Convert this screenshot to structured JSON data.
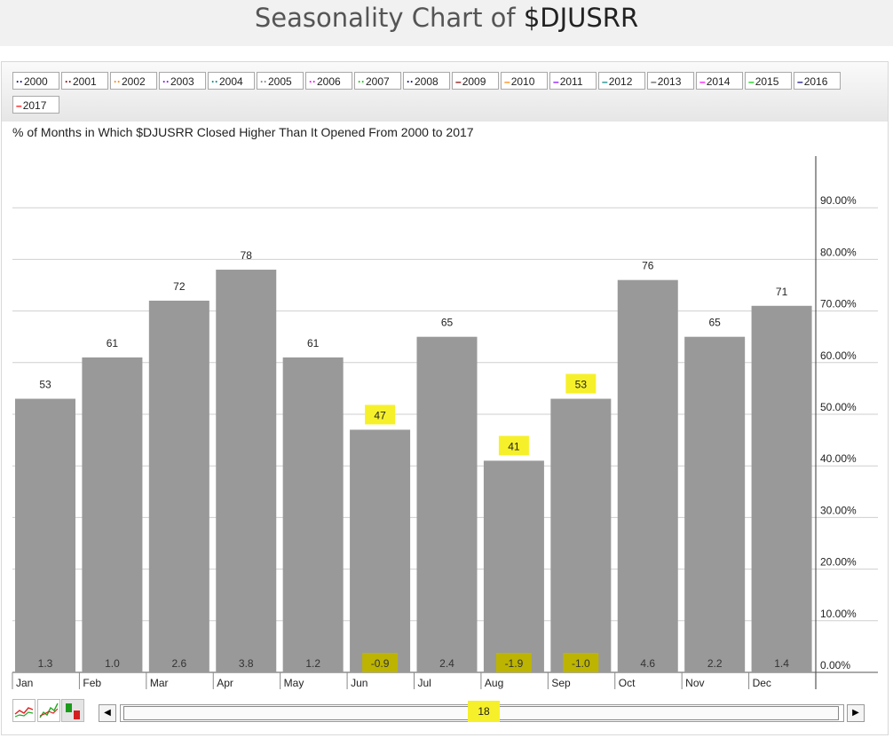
{
  "page": {
    "title_prefix": "Seasonality Chart of ",
    "title_symbol": "$DJUSRR"
  },
  "legend": [
    {
      "label": "2000",
      "color": "#000080"
    },
    {
      "label": "2001",
      "color": "#800000"
    },
    {
      "label": "2002",
      "color": "#ff8000"
    },
    {
      "label": "2003",
      "color": "#8000ff"
    },
    {
      "label": "2004",
      "color": "#008080"
    },
    {
      "label": "2005",
      "color": "#808080"
    },
    {
      "label": "2006",
      "color": "#ff00ff"
    },
    {
      "label": "2007",
      "color": "#00cc00"
    },
    {
      "label": "2008",
      "color": "#000080"
    },
    {
      "label": "2009",
      "color": "#800000"
    },
    {
      "label": "2010",
      "color": "#ff8000"
    },
    {
      "label": "2011",
      "color": "#8000ff"
    },
    {
      "label": "2012",
      "color": "#008080"
    },
    {
      "label": "2013",
      "color": "#555555"
    },
    {
      "label": "2014",
      "color": "#ff00ff"
    },
    {
      "label": "2015",
      "color": "#00cc00"
    },
    {
      "label": "2016",
      "color": "#000080"
    },
    {
      "label": "2017",
      "color": "#ff0000"
    }
  ],
  "chart_data": {
    "type": "bar",
    "title": "% of Months in Which $DJUSRR Closed Higher Than It Opened From 2000 to 2017",
    "categories": [
      "Jan",
      "Feb",
      "Mar",
      "Apr",
      "May",
      "Jun",
      "Jul",
      "Aug",
      "Sep",
      "Oct",
      "Nov",
      "Dec"
    ],
    "values": [
      53,
      61,
      72,
      78,
      61,
      47,
      65,
      41,
      53,
      76,
      65,
      71
    ],
    "avg_change": [
      "1.3",
      "1.0",
      "2.6",
      "3.8",
      "1.2",
      "-0.9",
      "2.4",
      "-1.9",
      "-1.0",
      "4.6",
      "2.2",
      "1.4"
    ],
    "highlighted_value_labels": [
      "Jun",
      "Aug",
      "Sep"
    ],
    "highlighted_change_labels": [
      "Jun",
      "Aug",
      "Sep"
    ],
    "ylim": [
      0,
      100
    ],
    "yticks": [
      "0.00%",
      "10.00%",
      "20.00%",
      "30.00%",
      "40.00%",
      "50.00%",
      "60.00%",
      "70.00%",
      "80.00%",
      "90.00%"
    ],
    "ytick_values": [
      0,
      10,
      20,
      30,
      40,
      50,
      60,
      70,
      80,
      90
    ],
    "grid": true,
    "axis_position": "right",
    "bar_color": "#999999",
    "highlight_color": "#f6f02a"
  },
  "scrollbar": {
    "value": "18"
  }
}
